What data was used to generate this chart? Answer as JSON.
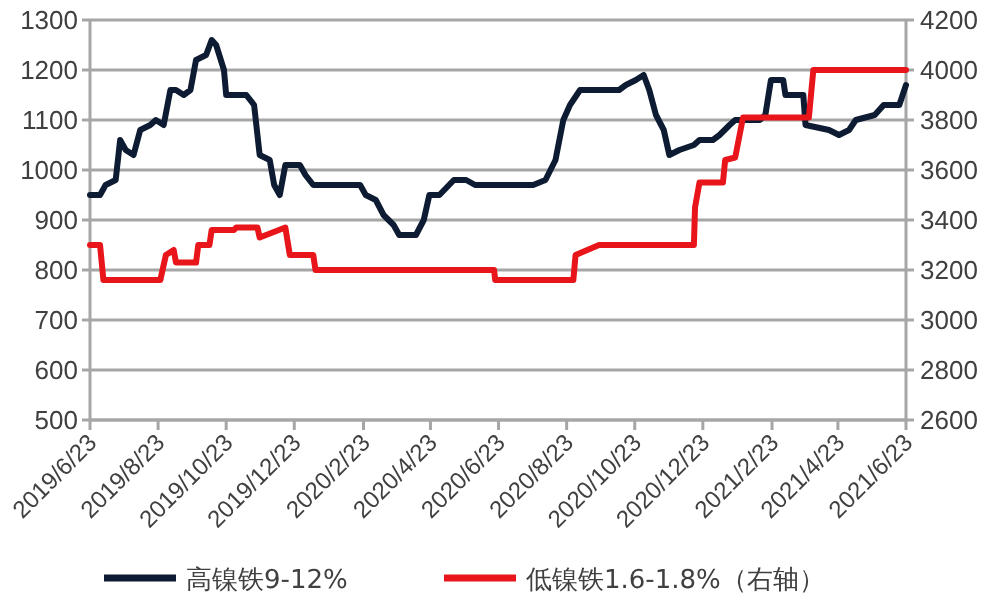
{
  "chart_data": {
    "type": "line",
    "legend": "bottom",
    "grid": "y",
    "marker": "none",
    "line_style": "solid",
    "xlim": [
      "2019-06-23",
      "2021-06-23"
    ],
    "xticks": [
      {
        "value": "2019-06-23",
        "label": "2019/6/23"
      },
      {
        "value": "2019-08-23",
        "label": "2019/8/23"
      },
      {
        "value": "2019-10-23",
        "label": "2019/10/23"
      },
      {
        "value": "2019-12-23",
        "label": "2019/12/23"
      },
      {
        "value": "2020-02-23",
        "label": "2020/2/23"
      },
      {
        "value": "2020-04-23",
        "label": "2020/4/23"
      },
      {
        "value": "2020-06-23",
        "label": "2020/6/23"
      },
      {
        "value": "2020-08-23",
        "label": "2020/8/23"
      },
      {
        "value": "2020-10-23",
        "label": "2020/10/23"
      },
      {
        "value": "2020-12-23",
        "label": "2020/12/23"
      },
      {
        "value": "2021-02-23",
        "label": "2021/2/23"
      },
      {
        "value": "2021-04-23",
        "label": "2021/4/23"
      },
      {
        "value": "2021-06-23",
        "label": "2021/6/23"
      }
    ],
    "ylim": [
      500,
      1300
    ],
    "yticks": [
      500,
      600,
      700,
      800,
      900,
      1000,
      1100,
      1200,
      1300
    ],
    "y2lim": [
      2600,
      4200
    ],
    "y2ticks": [
      2600,
      2800,
      3000,
      3200,
      3400,
      3600,
      3800,
      4000,
      4200
    ],
    "series": [
      {
        "name": "高镍铁9-12%",
        "color": "#0d1b33",
        "x": [
          "2019-06-23",
          "2019-07-02",
          "2019-07-07",
          "2019-07-16",
          "2019-07-20",
          "2019-07-25",
          "2019-08-01",
          "2019-08-07",
          "2019-08-16",
          "2019-08-21",
          "2019-08-28",
          "2019-09-03",
          "2019-09-08",
          "2019-09-15",
          "2019-09-21",
          "2019-09-26",
          "2019-10-05",
          "2019-10-10",
          "2019-10-14",
          "2019-10-21",
          "2019-10-23",
          "2019-11-10",
          "2019-11-17",
          "2019-11-22",
          "2019-12-01",
          "2019-12-05",
          "2019-12-10",
          "2019-12-15",
          "2019-12-28",
          "2020-01-02",
          "2020-01-09",
          "2020-02-20",
          "2020-02-25",
          "2020-03-05",
          "2020-03-12",
          "2020-03-21",
          "2020-03-26",
          "2020-04-10",
          "2020-04-17",
          "2020-04-22",
          "2020-05-01",
          "2020-05-14",
          "2020-05-25",
          "2020-06-02",
          "2020-06-24",
          "2020-07-06",
          "2020-07-24",
          "2020-08-04",
          "2020-08-13",
          "2020-08-20",
          "2020-08-26",
          "2020-09-04",
          "2020-10-09",
          "2020-10-15",
          "2020-10-24",
          "2020-10-31",
          "2020-11-05",
          "2020-11-11",
          "2020-11-18",
          "2020-11-23",
          "2020-12-02",
          "2020-12-15",
          "2020-12-20",
          "2021-01-01",
          "2021-01-07",
          "2021-01-16",
          "2021-01-21",
          "2021-02-12",
          "2021-02-17",
          "2021-02-22",
          "2021-03-05",
          "2021-03-07",
          "2021-03-23",
          "2021-03-25",
          "2021-04-15",
          "2021-04-24",
          "2021-05-03",
          "2021-05-09",
          "2021-05-26",
          "2021-06-03",
          "2021-06-17",
          "2021-06-23"
        ],
        "values": [
          950,
          950,
          970,
          980,
          1060,
          1040,
          1030,
          1080,
          1090,
          1100,
          1090,
          1160,
          1160,
          1150,
          1160,
          1220,
          1230,
          1260,
          1250,
          1200,
          1150,
          1150,
          1130,
          1030,
          1020,
          970,
          950,
          1010,
          1010,
          990,
          970,
          970,
          950,
          940,
          910,
          890,
          870,
          870,
          900,
          950,
          950,
          980,
          980,
          970,
          970,
          970,
          970,
          980,
          1020,
          1100,
          1130,
          1160,
          1160,
          1170,
          1180,
          1190,
          1160,
          1110,
          1080,
          1030,
          1040,
          1050,
          1060,
          1060,
          1070,
          1090,
          1100,
          1100,
          1110,
          1180,
          1180,
          1150,
          1150,
          1090,
          1080,
          1070,
          1080,
          1100,
          1110,
          1130,
          1130,
          1170
        ]
      },
      {
        "name": "低镍铁1.6-1.8%（右轴）",
        "color": "#e8161b",
        "axis": "y2",
        "x": [
          "2019-06-23",
          "2019-07-02",
          "2019-07-05",
          "2019-08-25",
          "2019-08-30",
          "2019-09-06",
          "2019-09-08",
          "2019-09-26",
          "2019-09-28",
          "2019-10-08",
          "2019-10-10",
          "2019-10-30",
          "2019-11-01",
          "2019-11-20",
          "2019-11-22",
          "2019-12-15",
          "2019-12-19",
          "2020-01-09",
          "2020-01-11",
          "2020-06-19",
          "2020-06-20",
          "2020-08-29",
          "2020-08-31",
          "2020-09-21",
          "2020-12-15",
          "2020-12-16",
          "2020-12-20",
          "2021-01-10",
          "2021-01-12",
          "2021-01-21",
          "2021-01-28",
          "2021-03-28",
          "2021-04-01",
          "2021-06-23"
        ],
        "values": [
          3300,
          3300,
          3160,
          3160,
          3260,
          3280,
          3230,
          3230,
          3300,
          3300,
          3360,
          3360,
          3370,
          3370,
          3330,
          3370,
          3260,
          3260,
          3200,
          3200,
          3160,
          3160,
          3260,
          3300,
          3300,
          3450,
          3550,
          3550,
          3640,
          3650,
          3810,
          3810,
          4000,
          4000
        ]
      }
    ]
  }
}
